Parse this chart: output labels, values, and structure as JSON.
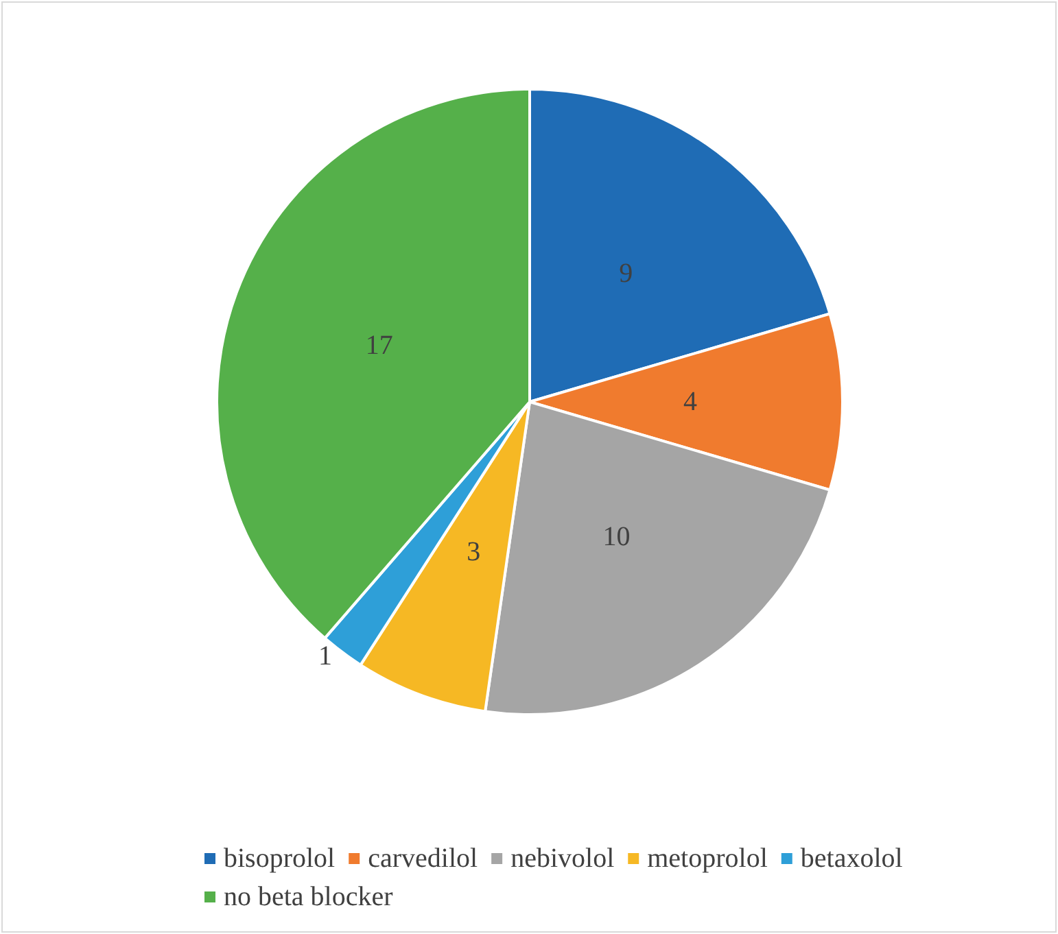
{
  "chart_data": {
    "type": "pie",
    "categories": [
      "bisoprolol",
      "carvedilol",
      "nebivolol",
      "metoprolol",
      "betaxolol",
      "no beta blocker"
    ],
    "values": [
      9,
      4,
      10,
      3,
      1,
      17
    ],
    "colors": [
      "#1f6cb5",
      "#f07b2e",
      "#a5a5a5",
      "#f6b824",
      "#2e9fd8",
      "#55b04a"
    ],
    "data_labels": true,
    "legend": "bottom"
  }
}
